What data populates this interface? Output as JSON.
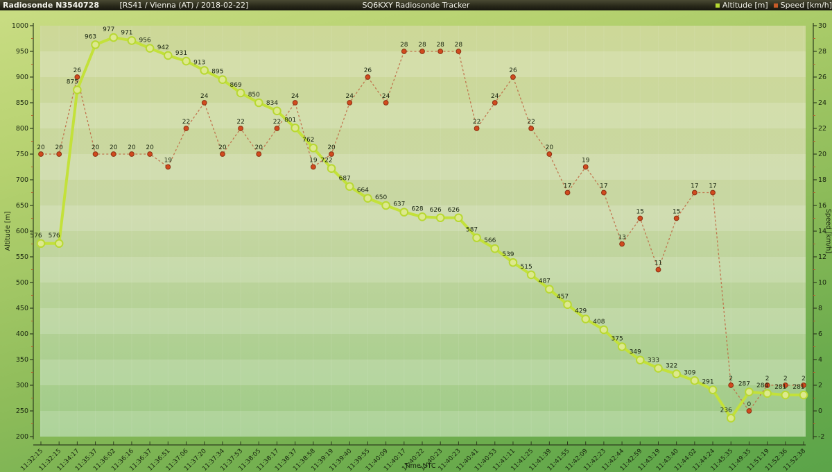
{
  "header": {
    "station": "Radiosonde N3540728",
    "details": "[RS41 / Vienna (AT) / 2018-02-22]",
    "app_title": "SQ6KXY Radiosonde Tracker",
    "legend": [
      {
        "label": "Altitude [m]",
        "color": "#b5d832"
      },
      {
        "label": "Speed [km/h]",
        "color": "#c75b28"
      }
    ]
  },
  "chart_data": {
    "type": "line",
    "title": "SQ6KXY Radiosonde Tracker",
    "xlabel": "Time UTC",
    "grid": "striped-horizontal-bands",
    "legend_position": "top-right",
    "x_labels": [
      "11:32:15",
      "11:32:15",
      "11:34:17",
      "11:35:37",
      "11:36:02",
      "11:36:16",
      "11:36:37",
      "11:36:51",
      "11:37:06",
      "11:37:20",
      "11:37:34",
      "11:37:53",
      "11:38:05",
      "11:38:17",
      "11:38:37",
      "11:38:58",
      "11:39:19",
      "11:39:40",
      "11:39:55",
      "11:40:09",
      "11:40:17",
      "11:40:22",
      "11:40:23",
      "11:40:23",
      "11:40:41",
      "11:40:53",
      "11:41:11",
      "11:41:25",
      "11:41:39",
      "11:41:55",
      "11:42:09",
      "11:42:23",
      "11:42:44",
      "11:42:59",
      "11:43:19",
      "11:43:40",
      "11:44:02",
      "11:44:24",
      "11:45:35",
      "11:49:35",
      "11:51:19",
      "11:52:36",
      "11:52:38"
    ],
    "left_axis": {
      "label": "Altitude [m]",
      "min": 200,
      "max": 1000,
      "step": 50
    },
    "right_axis": {
      "label": "Speed [km/h]",
      "min": -2,
      "max": 30,
      "step": 2
    },
    "series": [
      {
        "name": "Altitude [m]",
        "axis": "left",
        "line_style": "solid",
        "color": "#c3e13a",
        "marker_fill": "#dde98e",
        "marker_stroke": "#b8d832",
        "values": [
          576,
          576,
          875,
          963,
          977,
          971,
          956,
          942,
          931,
          913,
          895,
          869,
          850,
          834,
          801,
          762,
          722,
          687,
          664,
          650,
          637,
          628,
          626,
          626,
          587,
          566,
          539,
          515,
          487,
          457,
          429,
          408,
          375,
          349,
          333,
          322,
          309,
          291,
          236,
          287,
          284,
          281,
          281
        ]
      },
      {
        "name": "Speed [km/h]",
        "axis": "right",
        "line_style": "dashed",
        "color": "#bf6a45",
        "marker_fill": "#d14a1e",
        "marker_stroke": "#8a2f12",
        "values": [
          20,
          20,
          26,
          20,
          20,
          20,
          20,
          19,
          22,
          24,
          20,
          22,
          20,
          22,
          24,
          19,
          20,
          24,
          26,
          24,
          28,
          28,
          28,
          28,
          22,
          24,
          26,
          22,
          20,
          17,
          19,
          17,
          13,
          15,
          11,
          15,
          17,
          17,
          2,
          0,
          2,
          2,
          2
        ]
      }
    ]
  },
  "colors": {
    "page_bg_top": "#cadd84",
    "page_bg_bottom": "#5ba449",
    "plot_bg_top": "#cdd898",
    "plot_bg_bottom": "#9ecb87",
    "axis_line": "#2c3c1c",
    "tick_label": "#18240f",
    "minor_tick": "#b4622e",
    "header_bg": "#26261a",
    "header_text": "#f2f2ea"
  }
}
